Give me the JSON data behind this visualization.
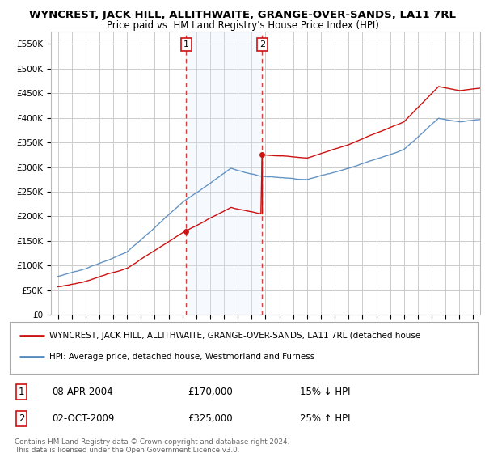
{
  "title": "WYNCREST, JACK HILL, ALLITHWAITE, GRANGE-OVER-SANDS, LA11 7RL",
  "subtitle": "Price paid vs. HM Land Registry's House Price Index (HPI)",
  "ylabel_ticks": [
    "£0",
    "£50K",
    "£100K",
    "£150K",
    "£200K",
    "£250K",
    "£300K",
    "£350K",
    "£400K",
    "£450K",
    "£500K",
    "£550K"
  ],
  "ytick_values": [
    0,
    50000,
    100000,
    150000,
    200000,
    250000,
    300000,
    350000,
    400000,
    450000,
    500000,
    550000
  ],
  "ylim": [
    0,
    575000
  ],
  "xlim_start": 1994.5,
  "xlim_end": 2025.5,
  "hpi_color": "#5588bb",
  "price_color": "#cc1111",
  "sale1_date": 2004.27,
  "sale1_price": 170000,
  "sale1_label": "1",
  "sale2_date": 2009.75,
  "sale2_price": 325000,
  "sale2_label": "2",
  "legend_line1": "WYNCREST, JACK HILL, ALLITHWAITE, GRANGE-OVER-SANDS, LA11 7RL (detached house",
  "legend_line2": "HPI: Average price, detached house, Westmorland and Furness",
  "annotation1_date": "08-APR-2004",
  "annotation1_price": "£170,000",
  "annotation1_pct": "15% ↓ HPI",
  "annotation2_date": "02-OCT-2009",
  "annotation2_price": "£325,000",
  "annotation2_pct": "25% ↑ HPI",
  "copyright_text": "Contains HM Land Registry data © Crown copyright and database right 2024.\nThis data is licensed under the Open Government Licence v3.0.",
  "background_color": "#ffffff",
  "grid_color": "#cccccc",
  "span_color": "#ddeeff"
}
